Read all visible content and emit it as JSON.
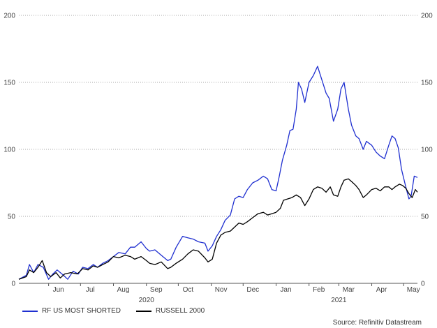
{
  "chart_data": {
    "type": "line",
    "title": "",
    "xlabel": "",
    "ylabel": "",
    "ylim": [
      0,
      200
    ],
    "yticks": [
      0,
      50,
      100,
      150,
      200
    ],
    "grid": true,
    "legend_position": "bottom-left",
    "x_range": [
      "2020-05-04",
      "2021-05-14"
    ],
    "month_ticks": [
      {
        "date": "2020-06-01",
        "label": "Jun"
      },
      {
        "date": "2020-07-01",
        "label": "Jul"
      },
      {
        "date": "2020-08-01",
        "label": "Aug"
      },
      {
        "date": "2020-09-01",
        "label": "Sep"
      },
      {
        "date": "2020-10-01",
        "label": "Oct"
      },
      {
        "date": "2020-11-01",
        "label": "Nov"
      },
      {
        "date": "2020-12-01",
        "label": "Dec"
      },
      {
        "date": "2021-01-01",
        "label": "Jan"
      },
      {
        "date": "2021-02-01",
        "label": "Feb"
      },
      {
        "date": "2021-03-01",
        "label": "Mar"
      },
      {
        "date": "2021-04-01",
        "label": "Apr"
      },
      {
        "date": "2021-05-01",
        "label": "May"
      }
    ],
    "year_labels": [
      {
        "date": "2020-09-01",
        "label": "2020"
      },
      {
        "date": "2021-03-01",
        "label": "2021"
      }
    ],
    "series": [
      {
        "name": "RF US MOST SHORTED",
        "color": "#1f2fd0",
        "points": [
          [
            "2020-05-04",
            3
          ],
          [
            "2020-05-11",
            6
          ],
          [
            "2020-05-14",
            14
          ],
          [
            "2020-05-18",
            8
          ],
          [
            "2020-05-22",
            14
          ],
          [
            "2020-05-27",
            12
          ],
          [
            "2020-06-01",
            3
          ],
          [
            "2020-06-05",
            7
          ],
          [
            "2020-06-09",
            10
          ],
          [
            "2020-06-15",
            6
          ],
          [
            "2020-06-19",
            3
          ],
          [
            "2020-06-24",
            9
          ],
          [
            "2020-06-29",
            7
          ],
          [
            "2020-07-03",
            12
          ],
          [
            "2020-07-08",
            11
          ],
          [
            "2020-07-13",
            14
          ],
          [
            "2020-07-17",
            12
          ],
          [
            "2020-07-22",
            15
          ],
          [
            "2020-07-27",
            17
          ],
          [
            "2020-08-01",
            20
          ],
          [
            "2020-08-06",
            23
          ],
          [
            "2020-08-12",
            22
          ],
          [
            "2020-08-17",
            27
          ],
          [
            "2020-08-21",
            27
          ],
          [
            "2020-08-27",
            31
          ],
          [
            "2020-09-01",
            26
          ],
          [
            "2020-09-04",
            24
          ],
          [
            "2020-09-09",
            25
          ],
          [
            "2020-09-15",
            21
          ],
          [
            "2020-09-21",
            17
          ],
          [
            "2020-09-24",
            18
          ],
          [
            "2020-09-29",
            27
          ],
          [
            "2020-10-05",
            35
          ],
          [
            "2020-10-10",
            34
          ],
          [
            "2020-10-15",
            33
          ],
          [
            "2020-10-20",
            31
          ],
          [
            "2020-10-26",
            30
          ],
          [
            "2020-10-29",
            24
          ],
          [
            "2020-11-02",
            28
          ],
          [
            "2020-11-06",
            35
          ],
          [
            "2020-11-10",
            40
          ],
          [
            "2020-11-14",
            47
          ],
          [
            "2020-11-19",
            51
          ],
          [
            "2020-11-23",
            63
          ],
          [
            "2020-11-27",
            65
          ],
          [
            "2020-12-01",
            64
          ],
          [
            "2020-12-05",
            70
          ],
          [
            "2020-12-10",
            75
          ],
          [
            "2020-12-15",
            77
          ],
          [
            "2020-12-20",
            80
          ],
          [
            "2020-12-24",
            78
          ],
          [
            "2020-12-28",
            70
          ],
          [
            "2021-01-01",
            69
          ],
          [
            "2021-01-04",
            80
          ],
          [
            "2021-01-07",
            92
          ],
          [
            "2021-01-11",
            103
          ],
          [
            "2021-01-14",
            114
          ],
          [
            "2021-01-17",
            115
          ],
          [
            "2021-01-20",
            130
          ],
          [
            "2021-01-22",
            150
          ],
          [
            "2021-01-25",
            145
          ],
          [
            "2021-01-28",
            135
          ],
          [
            "2021-02-01",
            150
          ],
          [
            "2021-02-05",
            155
          ],
          [
            "2021-02-09",
            162
          ],
          [
            "2021-02-13",
            152
          ],
          [
            "2021-02-17",
            142
          ],
          [
            "2021-02-20",
            138
          ],
          [
            "2021-02-24",
            121
          ],
          [
            "2021-02-28",
            130
          ],
          [
            "2021-03-03",
            145
          ],
          [
            "2021-03-06",
            150
          ],
          [
            "2021-03-10",
            130
          ],
          [
            "2021-03-13",
            118
          ],
          [
            "2021-03-17",
            110
          ],
          [
            "2021-03-20",
            108
          ],
          [
            "2021-03-24",
            100
          ],
          [
            "2021-03-27",
            106
          ],
          [
            "2021-04-01",
            103
          ],
          [
            "2021-04-05",
            98
          ],
          [
            "2021-04-09",
            95
          ],
          [
            "2021-04-13",
            93
          ],
          [
            "2021-04-17",
            103
          ],
          [
            "2021-04-20",
            110
          ],
          [
            "2021-04-23",
            108
          ],
          [
            "2021-04-26",
            101
          ],
          [
            "2021-04-29",
            85
          ],
          [
            "2021-05-03",
            72
          ],
          [
            "2021-05-06",
            63
          ],
          [
            "2021-05-08",
            65
          ],
          [
            "2021-05-11",
            80
          ],
          [
            "2021-05-14",
            79
          ]
        ]
      },
      {
        "name": "RUSSELL 2000",
        "color": "#000000",
        "points": [
          [
            "2020-05-04",
            3
          ],
          [
            "2020-05-11",
            5
          ],
          [
            "2020-05-14",
            10
          ],
          [
            "2020-05-18",
            8
          ],
          [
            "2020-05-22",
            12
          ],
          [
            "2020-05-26",
            17
          ],
          [
            "2020-05-30",
            8
          ],
          [
            "2020-06-03",
            5
          ],
          [
            "2020-06-08",
            8
          ],
          [
            "2020-06-12",
            4
          ],
          [
            "2020-06-16",
            7
          ],
          [
            "2020-06-22",
            8
          ],
          [
            "2020-06-28",
            7
          ],
          [
            "2020-07-03",
            11
          ],
          [
            "2020-07-08",
            10
          ],
          [
            "2020-07-13",
            13
          ],
          [
            "2020-07-17",
            12
          ],
          [
            "2020-07-22",
            14
          ],
          [
            "2020-07-27",
            16
          ],
          [
            "2020-08-01",
            20
          ],
          [
            "2020-08-06",
            19
          ],
          [
            "2020-08-12",
            21
          ],
          [
            "2020-08-17",
            20
          ],
          [
            "2020-08-21",
            18
          ],
          [
            "2020-08-27",
            20
          ],
          [
            "2020-09-01",
            17
          ],
          [
            "2020-09-04",
            15
          ],
          [
            "2020-09-09",
            14
          ],
          [
            "2020-09-15",
            16
          ],
          [
            "2020-09-21",
            11
          ],
          [
            "2020-09-24",
            12
          ],
          [
            "2020-09-29",
            15
          ],
          [
            "2020-10-05",
            18
          ],
          [
            "2020-10-10",
            22
          ],
          [
            "2020-10-15",
            25
          ],
          [
            "2020-10-20",
            24
          ],
          [
            "2020-10-26",
            19
          ],
          [
            "2020-10-29",
            16
          ],
          [
            "2020-11-02",
            18
          ],
          [
            "2020-11-06",
            30
          ],
          [
            "2020-11-10",
            36
          ],
          [
            "2020-11-14",
            38
          ],
          [
            "2020-11-19",
            39
          ],
          [
            "2020-11-23",
            42
          ],
          [
            "2020-11-27",
            45
          ],
          [
            "2020-12-01",
            44
          ],
          [
            "2020-12-05",
            46
          ],
          [
            "2020-12-10",
            49
          ],
          [
            "2020-12-15",
            52
          ],
          [
            "2020-12-20",
            53
          ],
          [
            "2020-12-24",
            51
          ],
          [
            "2020-12-28",
            52
          ],
          [
            "2021-01-01",
            53
          ],
          [
            "2021-01-05",
            56
          ],
          [
            "2021-01-08",
            62
          ],
          [
            "2021-01-12",
            63
          ],
          [
            "2021-01-16",
            64
          ],
          [
            "2021-01-20",
            66
          ],
          [
            "2021-01-24",
            64
          ],
          [
            "2021-01-28",
            58
          ],
          [
            "2021-02-01",
            63
          ],
          [
            "2021-02-05",
            70
          ],
          [
            "2021-02-09",
            72
          ],
          [
            "2021-02-13",
            71
          ],
          [
            "2021-02-17",
            68
          ],
          [
            "2021-02-21",
            72
          ],
          [
            "2021-02-24",
            66
          ],
          [
            "2021-02-28",
            65
          ],
          [
            "2021-03-03",
            72
          ],
          [
            "2021-03-06",
            77
          ],
          [
            "2021-03-10",
            78
          ],
          [
            "2021-03-13",
            76
          ],
          [
            "2021-03-17",
            73
          ],
          [
            "2021-03-20",
            70
          ],
          [
            "2021-03-24",
            64
          ],
          [
            "2021-03-27",
            66
          ],
          [
            "2021-04-01",
            70
          ],
          [
            "2021-04-05",
            71
          ],
          [
            "2021-04-09",
            69
          ],
          [
            "2021-04-13",
            72
          ],
          [
            "2021-04-17",
            72
          ],
          [
            "2021-04-20",
            70
          ],
          [
            "2021-04-23",
            72
          ],
          [
            "2021-04-27",
            74
          ],
          [
            "2021-04-30",
            73
          ],
          [
            "2021-05-03",
            71
          ],
          [
            "2021-05-06",
            67
          ],
          [
            "2021-05-09",
            64
          ],
          [
            "2021-05-12",
            70
          ],
          [
            "2021-05-14",
            68
          ]
        ]
      }
    ]
  },
  "legend": {
    "items": [
      {
        "label": "RF US MOST SHORTED",
        "color": "#1f2fd0"
      },
      {
        "label": "RUSSELL 2000",
        "color": "#000000"
      }
    ]
  },
  "source": "Source: Refinitiv Datastream"
}
